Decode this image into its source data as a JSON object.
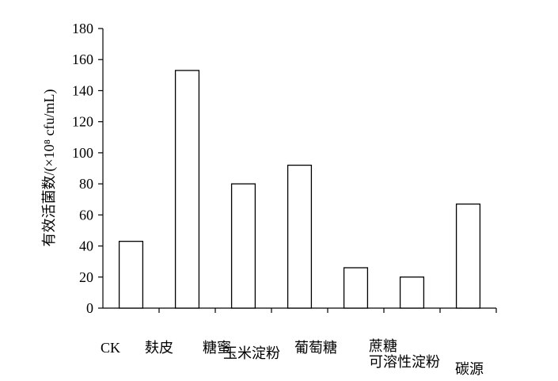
{
  "chart_data": {
    "type": "bar",
    "categories": [
      "CK",
      "麸皮",
      "糖蜜",
      "玉米淀粉",
      "葡萄糖",
      "蔗糖",
      "可溶性淀粉"
    ],
    "values": [
      43,
      153,
      80,
      92,
      26,
      20,
      67
    ],
    "color": "#ffffff",
    "x_label": "碳源",
    "y_label": "有效活菌数/(×10⁸ cfu/mL)",
    "ylim": [
      0,
      180
    ],
    "yticks": [
      0,
      20,
      40,
      60,
      80,
      100,
      120,
      140,
      160,
      180
    ],
    "grid": false
  }
}
